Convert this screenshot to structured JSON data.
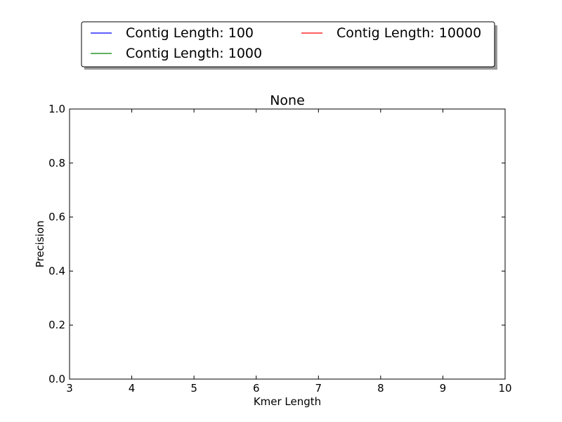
{
  "chart_data": {
    "type": "line",
    "title": "None",
    "xlabel": "Kmer Length",
    "ylabel": "Precision",
    "xlim": [
      3,
      10
    ],
    "ylim": [
      0.0,
      1.0
    ],
    "x_ticks": [
      3,
      4,
      5,
      6,
      7,
      8,
      9,
      10
    ],
    "y_ticks": [
      "0.0",
      "0.2",
      "0.4",
      "0.6",
      "0.8",
      "1.0"
    ],
    "grid": false,
    "legend_position": "top-center",
    "series": [
      {
        "name": "Contig Length: 100",
        "color": "#0000ff",
        "x": [],
        "y": []
      },
      {
        "name": "Contig Length: 1000",
        "color": "#008000",
        "x": [],
        "y": []
      },
      {
        "name": "Contig Length: 10000",
        "color": "#ff0000",
        "x": [],
        "y": []
      }
    ]
  }
}
